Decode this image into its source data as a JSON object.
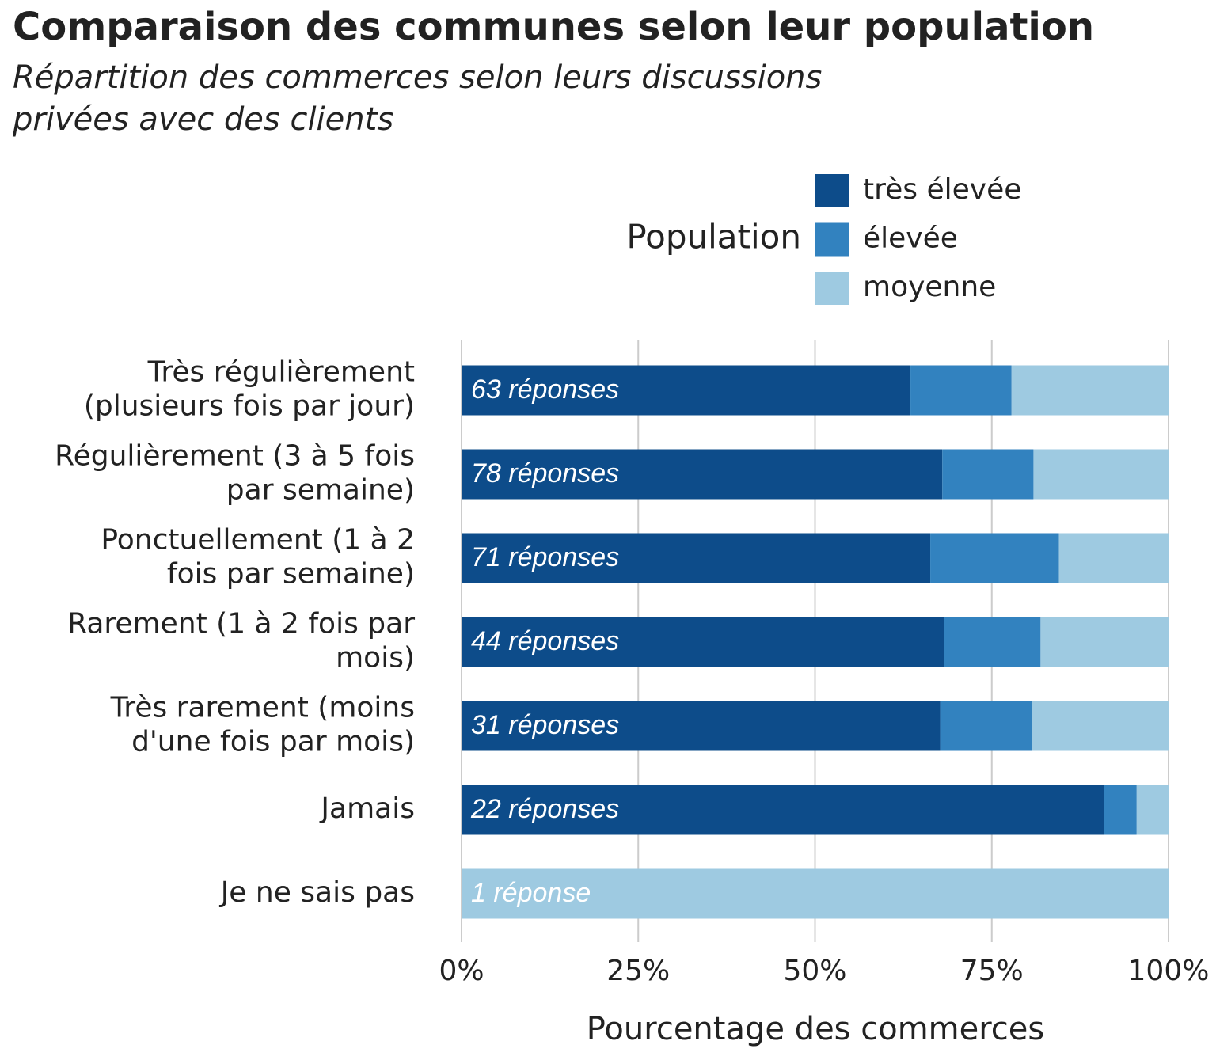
{
  "chart_data": {
    "type": "stacked_barh",
    "title": "Comparaison des communes selon leur population",
    "subtitle": [
      "Répartition des commerces selon leurs discussions",
      "privées avec des clients"
    ],
    "xlabel": "Pourcentage des commerces",
    "legend_title": "Population",
    "categories": [
      [
        "Très régulièrement",
        "(plusieurs fois par jour)"
      ],
      [
        "Régulièrement (3 à 5 fois",
        "par semaine)"
      ],
      [
        "Ponctuellement (1 à 2",
        "fois par semaine)"
      ],
      [
        "Rarement (1 à 2 fois par",
        "mois)"
      ],
      [
        "Très rarement (moins",
        "d'une fois par mois)"
      ],
      [
        "Jamais"
      ],
      [
        "Je ne sais pas"
      ]
    ],
    "bar_labels": [
      "63 réponses",
      "78 réponses",
      "71 réponses",
      "44 réponses",
      "31 réponses",
      "22 réponses",
      "1 réponse"
    ],
    "series": [
      {
        "name": "très élevée",
        "color": "#0d4c8a",
        "values": [
          63.5,
          68.0,
          66.3,
          68.2,
          67.7,
          90.9,
          0
        ]
      },
      {
        "name": "élevée",
        "color": "#3282bf",
        "values": [
          14.3,
          12.9,
          18.2,
          13.7,
          13.0,
          4.6,
          0
        ]
      },
      {
        "name": "moyenne",
        "color": "#9ecae1",
        "values": [
          22.2,
          19.1,
          15.5,
          18.1,
          19.3,
          4.5,
          100
        ]
      }
    ],
    "xlim": [
      0,
      100
    ],
    "xticks": [
      {
        "value": 0,
        "label": "0%"
      },
      {
        "value": 25,
        "label": "25%"
      },
      {
        "value": 50,
        "label": "50%"
      },
      {
        "value": 75,
        "label": "75%"
      },
      {
        "value": 100,
        "label": "100%"
      }
    ],
    "grid": true
  }
}
